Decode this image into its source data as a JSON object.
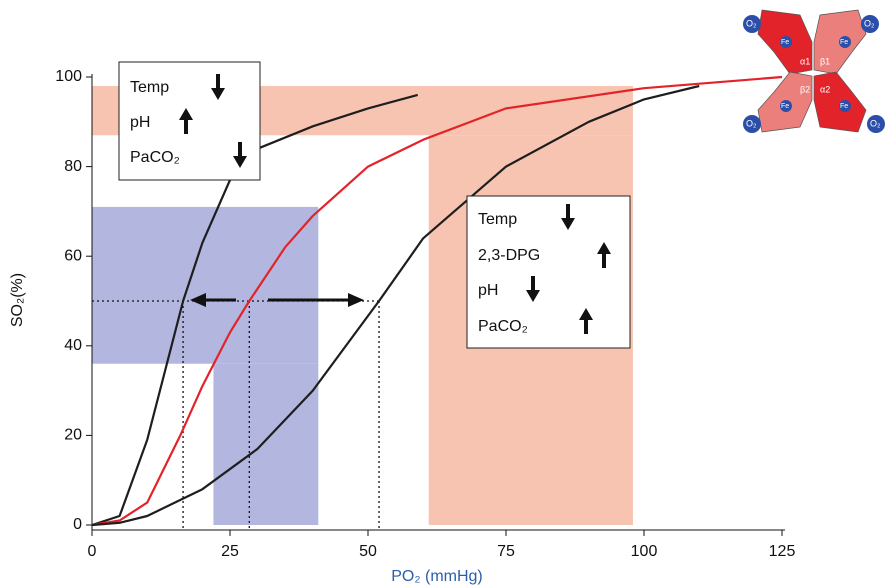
{
  "chart_data": {
    "type": "line",
    "x_label": "PO₂ (mmHg)",
    "y_label": "SO₂(%)",
    "xlim": [
      0,
      125
    ],
    "ylim": [
      0,
      100
    ],
    "xticks": [
      0,
      25,
      50,
      75,
      100,
      125
    ],
    "yticks": [
      0,
      20,
      40,
      60,
      80,
      100
    ],
    "series": [
      {
        "color": "#1e1e1e",
        "x": [
          0,
          5,
          10,
          16.5,
          20,
          25,
          30,
          40,
          50,
          59
        ],
        "values": [
          0,
          2,
          19,
          50,
          63,
          77,
          84,
          89,
          93,
          96
        ]
      },
      {
        "color": "#e3232a",
        "x": [
          0,
          5,
          10,
          16,
          20,
          25,
          28.5,
          35,
          40,
          50,
          60,
          75,
          100,
          125
        ],
        "values": [
          0,
          1,
          5,
          20,
          31,
          43,
          50,
          62,
          69,
          80,
          86,
          93,
          97.5,
          100
        ]
      },
      {
        "color": "#1e1e1e",
        "x": [
          0,
          5,
          10,
          20,
          30,
          40,
          52,
          60,
          75,
          90,
          100,
          110
        ],
        "values": [
          0,
          0.5,
          2,
          8,
          17,
          30,
          50,
          64,
          80,
          90,
          95,
          98
        ]
      }
    ],
    "regions": [
      {
        "x": [
          0,
          41
        ],
        "y": [
          36,
          71
        ],
        "color": "#b3b6df"
      },
      {
        "x": [
          22,
          41
        ],
        "y": [
          0,
          36
        ],
        "color": "#b3b6df"
      },
      {
        "x": [
          0,
          98
        ],
        "y": [
          87,
          98
        ],
        "color": "#f7c4b1"
      },
      {
        "x": [
          61,
          98
        ],
        "y": [
          0,
          87
        ],
        "color": "#f7c4b1"
      }
    ],
    "reference_lines": {
      "x": [
        16.5,
        28.5,
        52
      ],
      "y": 50
    },
    "left_box": [
      "Temp",
      "pH",
      "PaCO₂"
    ],
    "right_box": [
      "Temp",
      "2,3-DPG",
      "pH",
      "PaCO₂"
    ],
    "hemoglobin": {
      "oxygen": "O₂",
      "iron": "Fe",
      "subunits": [
        "α1",
        "β1",
        "β2",
        "α2"
      ]
    }
  }
}
